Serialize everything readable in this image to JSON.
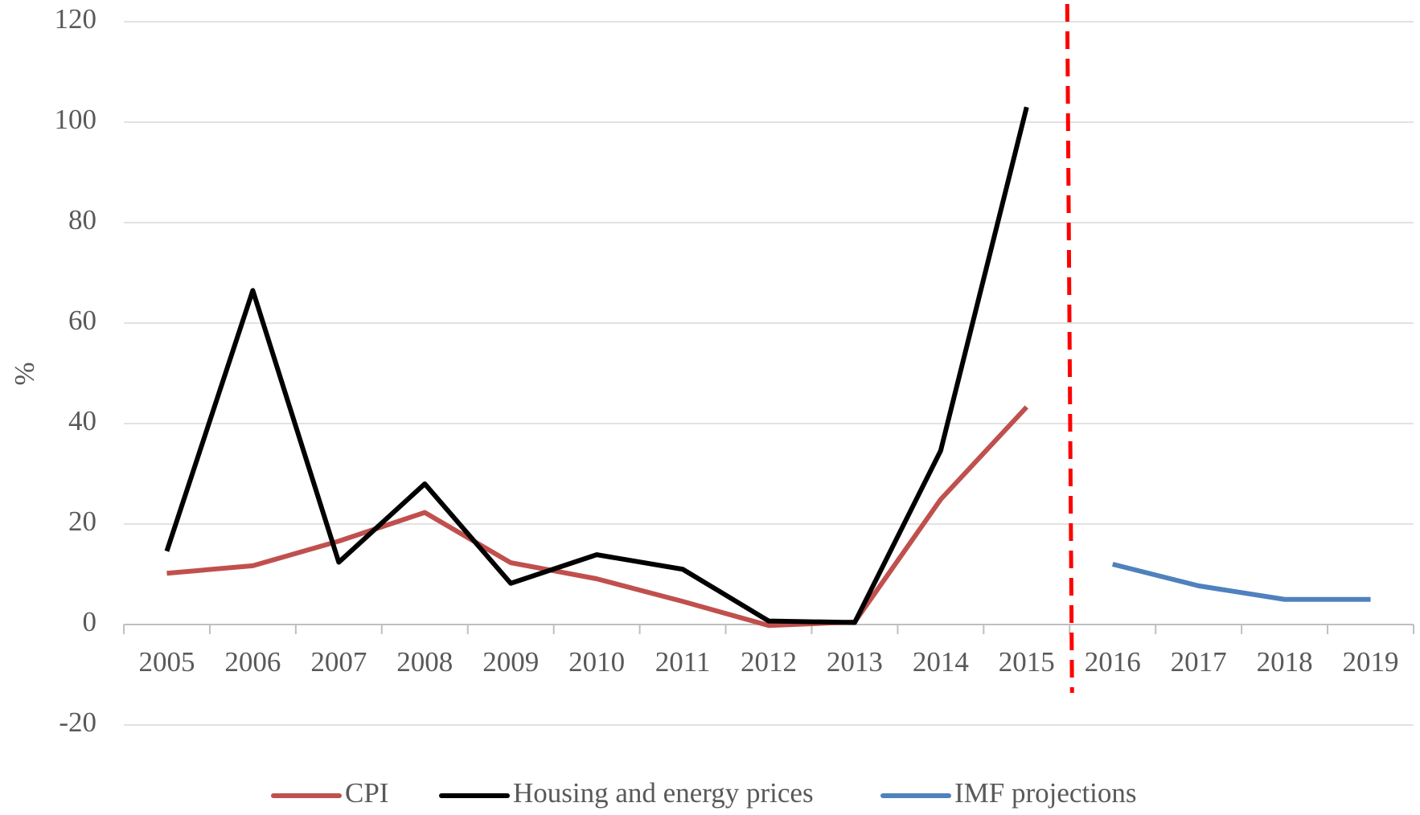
{
  "chart_data": {
    "type": "line",
    "y_label": "%",
    "categories": [
      "2005",
      "2006",
      "2007",
      "2008",
      "2009",
      "2010",
      "2011",
      "2012",
      "2013",
      "2014",
      "2015",
      "2016",
      "2017",
      "2018",
      "2019"
    ],
    "series": [
      {
        "name": "CPI",
        "color": "#c0504d",
        "values": [
          10.2,
          11.7,
          16.6,
          22.3,
          12.3,
          9.1,
          4.6,
          -0.2,
          0.5,
          24.9,
          43.3,
          null,
          null,
          null,
          null
        ]
      },
      {
        "name": "Housing and energy prices",
        "color": "#000000",
        "values": [
          14.6,
          66.5,
          12.4,
          28,
          8.2,
          13.9,
          11.0,
          0.7,
          0.4,
          34.6,
          103,
          null,
          null,
          null,
          null
        ]
      },
      {
        "name": "IMF projections",
        "color": "#4f81bd",
        "values": [
          null,
          null,
          null,
          null,
          null,
          null,
          null,
          null,
          null,
          null,
          null,
          12,
          7.7,
          5,
          5
        ]
      }
    ],
    "ylim": [
      -20,
      120
    ],
    "yticks": [
      -20,
      0,
      20,
      40,
      60,
      80,
      100,
      120
    ],
    "grid": true,
    "legend": "bottom"
  }
}
